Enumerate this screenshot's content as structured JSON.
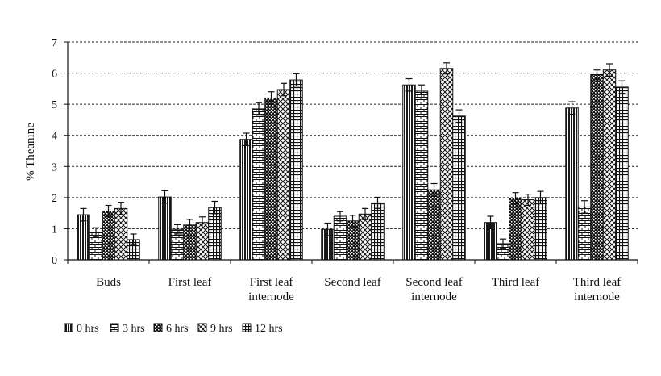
{
  "chart_data": {
    "type": "bar",
    "title": "",
    "xlabel": "",
    "ylabel": "% Theanine",
    "ylim": [
      0,
      7
    ],
    "yticks": [
      "0",
      "1",
      "2",
      "3",
      "4",
      "5",
      "6",
      "7"
    ],
    "grid": "horizontal dashed",
    "legend_position": "bottom-left",
    "categories": [
      [
        "Buds"
      ],
      [
        "First leaf"
      ],
      [
        "First leaf",
        "internode"
      ],
      [
        "Second leaf"
      ],
      [
        "Second leaf",
        "internode"
      ],
      [
        "Third leaf"
      ],
      [
        "Third leaf",
        "internode"
      ]
    ],
    "series": [
      {
        "name": "0 hrs",
        "pattern": "vertical-lines",
        "values": [
          1.45,
          2.02,
          3.87,
          0.98,
          5.62,
          1.2,
          4.88
        ],
        "errors": [
          0.2,
          0.2,
          0.2,
          0.2,
          0.2,
          0.2,
          0.2
        ]
      },
      {
        "name": "3 hrs",
        "pattern": "bricks",
        "values": [
          0.88,
          0.98,
          4.85,
          1.4,
          5.42,
          0.52,
          1.7
        ],
        "errors": [
          0.15,
          0.15,
          0.2,
          0.15,
          0.2,
          0.15,
          0.2
        ]
      },
      {
        "name": "6 hrs",
        "pattern": "dark-checker",
        "values": [
          1.57,
          1.12,
          5.2,
          1.25,
          2.25,
          1.98,
          5.95
        ],
        "errors": [
          0.18,
          0.18,
          0.2,
          0.18,
          0.2,
          0.18,
          0.15
        ]
      },
      {
        "name": "9 hrs",
        "pattern": "diamonds",
        "values": [
          1.65,
          1.2,
          5.47,
          1.47,
          6.15,
          1.93,
          6.1
        ],
        "errors": [
          0.2,
          0.18,
          0.2,
          0.18,
          0.18,
          0.18,
          0.2
        ]
      },
      {
        "name": "12 hrs",
        "pattern": "grid",
        "values": [
          0.65,
          1.68,
          5.78,
          1.83,
          4.62,
          2.0,
          5.55
        ],
        "errors": [
          0.18,
          0.2,
          0.2,
          0.18,
          0.2,
          0.2,
          0.2
        ]
      }
    ]
  }
}
